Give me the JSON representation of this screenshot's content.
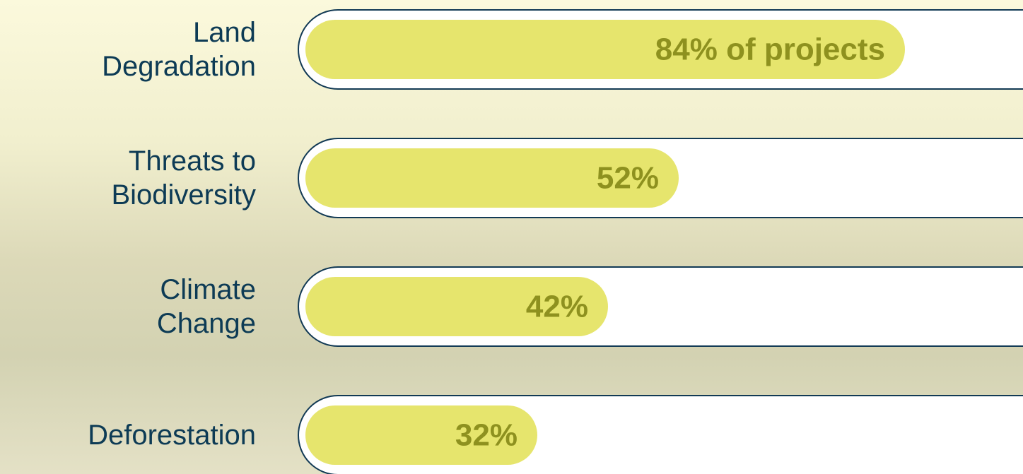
{
  "chart_data": {
    "type": "bar",
    "orientation": "horizontal",
    "categories": [
      "Land\nDegradation",
      "Threats to\nBiodiversity",
      "Climate\nChange",
      "Deforestation"
    ],
    "values": [
      84,
      52,
      42,
      32
    ],
    "value_labels": [
      "84% of projects",
      "52%",
      "42%",
      "32%"
    ],
    "color": "#e6e56d",
    "xlim": [
      0,
      100
    ]
  }
}
